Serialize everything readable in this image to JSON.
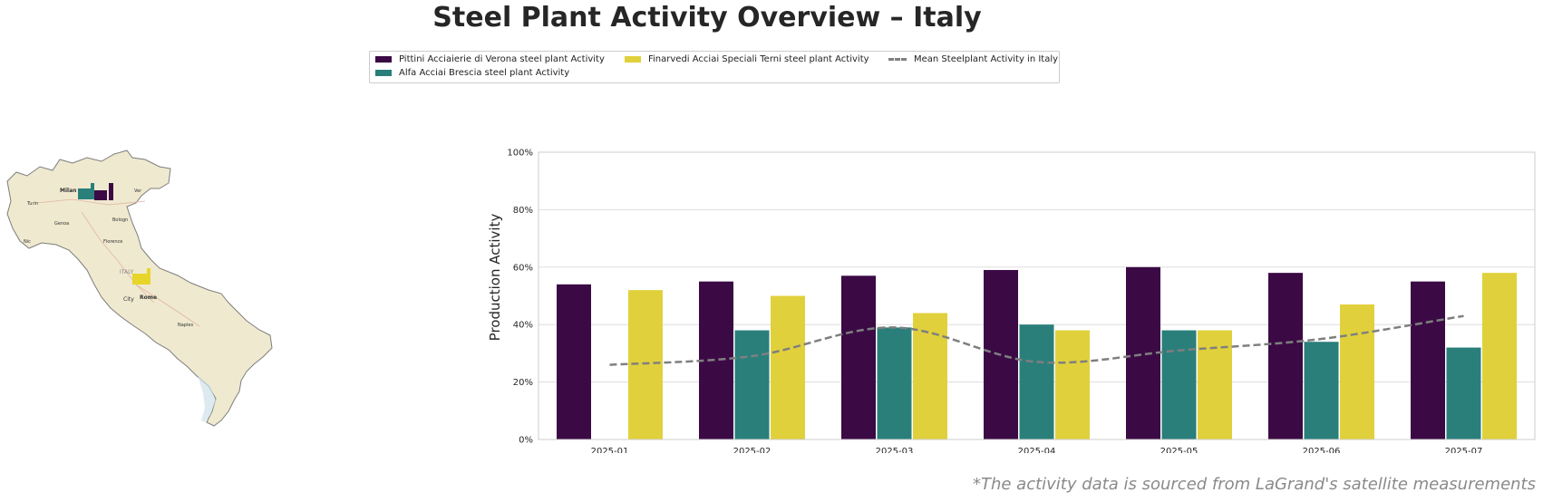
{
  "title": "Steel Plant Activity Overview – Italy",
  "legend": [
    {
      "label": "Pittini Acciaierie di Verona steel plant Activity",
      "color": "#3b0a45",
      "kind": "bar"
    },
    {
      "label": "Alfa Acciai Brescia steel plant Activity",
      "color": "#2a7f7b",
      "kind": "bar"
    },
    {
      "label": "Finarvedi Acciai Speciali Terni steel plant Activity",
      "color": "#e0d13c",
      "kind": "bar"
    },
    {
      "label": "Mean Steelplant Activity in Italy",
      "color": "#7f7f7f",
      "kind": "line"
    }
  ],
  "map": {
    "labels": {
      "milan": "Milan",
      "turin": "Turin",
      "genoa": "Genoa",
      "bologna": "Bologn",
      "florence": "Florence",
      "italy": "ITALY",
      "rome": "Rome",
      "city": "City",
      "naples": "Naples",
      "ver": "Ver",
      "nice": "Nic"
    },
    "colors": {
      "land": "#efe9cf",
      "sea": "#cfe3ea",
      "border": "#7d7d7d"
    },
    "icons": [
      "factory-icon-verona",
      "factory-icon-brescia",
      "factory-icon-terni"
    ]
  },
  "chart_data": {
    "type": "bar",
    "categories": [
      "2025-01",
      "2025-02",
      "2025-03",
      "2025-04",
      "2025-05",
      "2025-06",
      "2025-07"
    ],
    "series": [
      {
        "name": "Pittini Acciaierie di Verona steel plant Activity",
        "color": "#3b0a45",
        "values": [
          54,
          55,
          57,
          59,
          60,
          58,
          55
        ]
      },
      {
        "name": "Alfa Acciai Brescia steel plant Activity",
        "color": "#2a7f7b",
        "values": [
          null,
          38,
          39,
          40,
          38,
          34,
          32
        ]
      },
      {
        "name": "Finarvedi Acciai Speciali Terni steel plant Activity",
        "color": "#e0d13c",
        "values": [
          52,
          50,
          44,
          38,
          38,
          47,
          58
        ]
      }
    ],
    "line": {
      "name": "Mean Steelplant Activity in Italy",
      "color": "#7f7f7f",
      "values": [
        26,
        29,
        39,
        27,
        31,
        35,
        43
      ]
    },
    "ylabel": "Production Activity",
    "ylim": [
      0,
      100
    ],
    "yticks": [
      "0%",
      "20%",
      "40%",
      "60%",
      "80%",
      "100%"
    ],
    "grid": true,
    "legend_position": "top-center"
  },
  "footnote": "*The activity data is sourced from LaGrand's satellite measurements"
}
